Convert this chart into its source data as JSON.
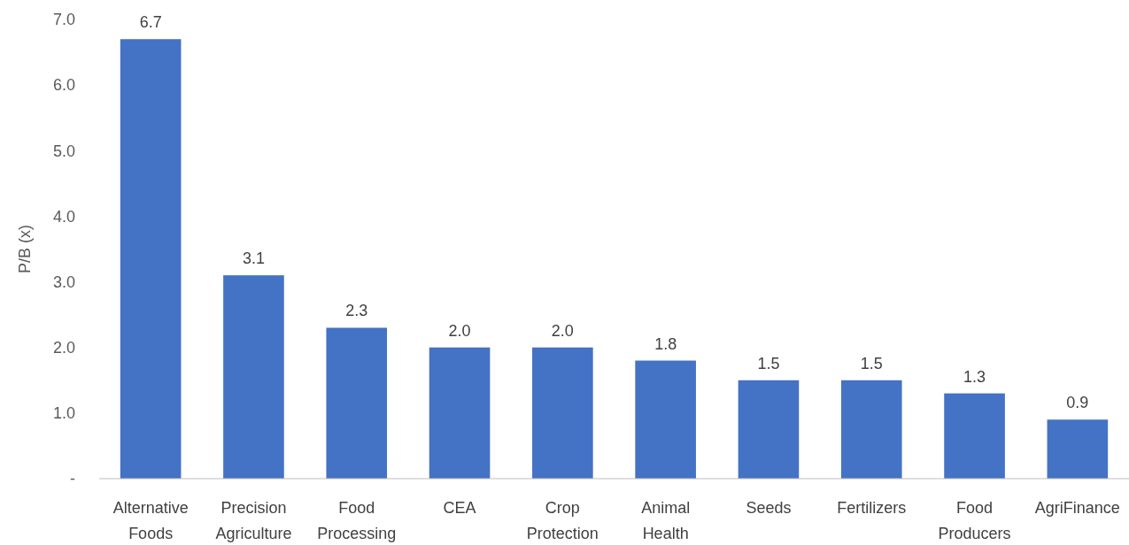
{
  "chart_data": {
    "type": "bar",
    "ylabel": "P/B (x)",
    "categories": [
      "Alternative Foods",
      "Precision Agriculture",
      "Food Processing",
      "CEA",
      "Crop Protection",
      "Animal Health",
      "Seeds",
      "Fertilizers",
      "Food Producers",
      "AgriFinance"
    ],
    "values": [
      6.7,
      3.1,
      2.3,
      2.0,
      2.0,
      1.8,
      1.5,
      1.5,
      1.3,
      0.9
    ],
    "value_labels": [
      "6.7",
      "3.1",
      "2.3",
      "2.0",
      "2.0",
      "1.8",
      "1.5",
      "1.5",
      "1.3",
      "0.9"
    ],
    "color": "#4472c4",
    "ylim": [
      0,
      7
    ],
    "yticks": [
      {
        "value": 0,
        "label": "-"
      },
      {
        "value": 1,
        "label": "1.0"
      },
      {
        "value": 2,
        "label": "2.0"
      },
      {
        "value": 3,
        "label": "3.0"
      },
      {
        "value": 4,
        "label": "4.0"
      },
      {
        "value": 5,
        "label": "5.0"
      },
      {
        "value": 6,
        "label": "6.0"
      },
      {
        "value": 7,
        "label": "7.0"
      }
    ]
  }
}
